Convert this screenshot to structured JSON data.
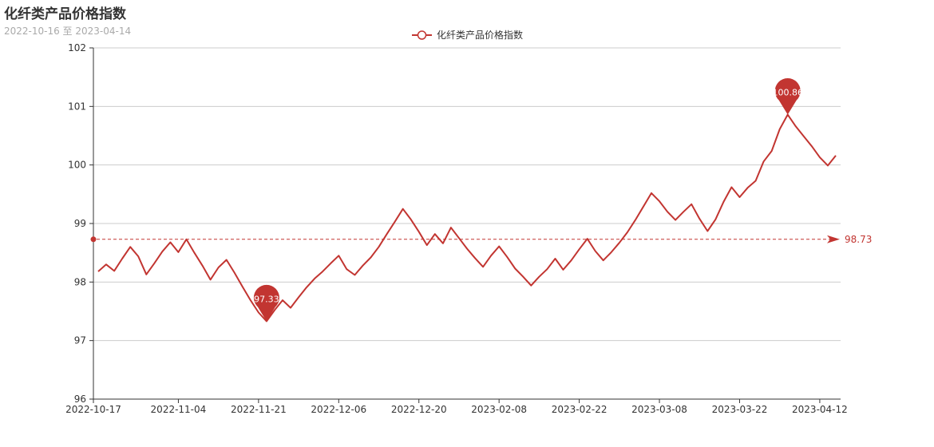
{
  "chart_data": {
    "type": "line",
    "title": "化纤类产品价格指数",
    "subtitle": "2022-10-16 至 2023-04-14",
    "color": "#c23531",
    "ylim": [
      96,
      102
    ],
    "y_ticks": [
      "96",
      "97",
      "98",
      "99",
      "100",
      "101",
      "102"
    ],
    "x_ticks": [
      "2022-10-17",
      "2022-11-04",
      "2022-11-21",
      "2022-12-06",
      "2022-12-20",
      "2023-02-08",
      "2023-02-22",
      "2023-03-08",
      "2023-03-22",
      "2023-04-12"
    ],
    "grid": true,
    "legend_position": "top",
    "series": [
      {
        "name": "化纤类产品价格指数",
        "values": [
          98.18,
          98.3,
          98.19,
          98.4,
          98.6,
          98.44,
          98.13,
          98.32,
          98.52,
          98.68,
          98.51,
          98.73,
          98.5,
          98.28,
          98.04,
          98.25,
          98.38,
          98.16,
          97.92,
          97.69,
          97.48,
          97.33,
          97.52,
          97.69,
          97.56,
          97.74,
          97.91,
          98.06,
          98.18,
          98.32,
          98.45,
          98.22,
          98.12,
          98.28,
          98.42,
          98.6,
          98.82,
          99.03,
          99.25,
          99.07,
          98.86,
          98.63,
          98.82,
          98.66,
          98.93,
          98.75,
          98.57,
          98.41,
          98.26,
          98.45,
          98.61,
          98.43,
          98.23,
          98.09,
          97.94,
          98.09,
          98.22,
          98.4,
          98.21,
          98.37,
          98.56,
          98.74,
          98.53,
          98.37,
          98.51,
          98.67,
          98.85,
          99.06,
          99.29,
          99.52,
          99.38,
          99.2,
          99.06,
          99.2,
          99.33,
          99.08,
          98.87,
          99.07,
          99.37,
          99.62,
          99.45,
          99.61,
          99.73,
          100.06,
          100.24,
          100.61,
          100.86,
          100.66,
          100.49,
          100.32,
          100.13,
          99.99,
          100.16
        ]
      }
    ],
    "mark_points": [
      {
        "label": "100.86",
        "kind": "max"
      },
      {
        "label": "97.33",
        "kind": "min"
      }
    ],
    "mark_line": {
      "label": "98.73",
      "kind": "average"
    }
  }
}
